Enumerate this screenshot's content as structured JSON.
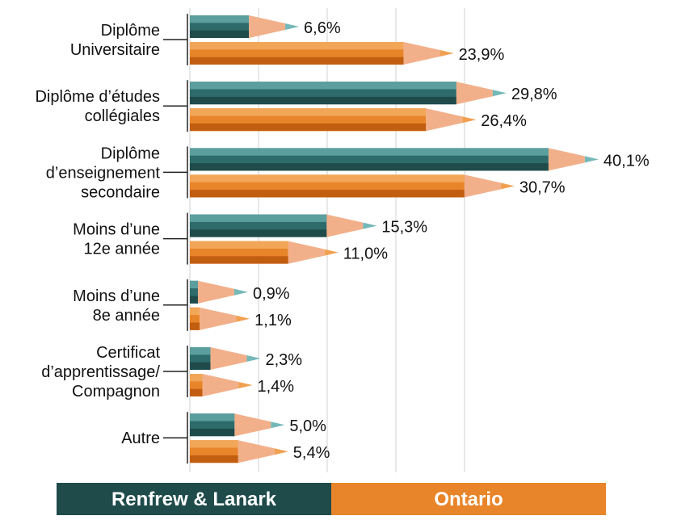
{
  "chart_data": {
    "type": "pencil-bar",
    "categories": [
      "Diplôme\nUniversitaire",
      "Diplôme d’études\ncollégiales",
      "Diplôme\nd’enseignement\nsecondaire",
      "Moins d’une\n12e année",
      "Moins d’une\n8e année",
      "Certificat\nd’apprentissage/\nCompagnon",
      "Autre"
    ],
    "series": [
      {
        "name": "Renfrew & Lanark",
        "color": "#2e6b6b",
        "values": [
          6.6,
          29.8,
          40.1,
          15.3,
          0.9,
          2.3,
          5.0
        ],
        "value_labels": [
          "6,6%",
          "29,8%",
          "40,1%",
          "15,3%",
          "0,9%",
          "2,3%",
          "5,0%"
        ]
      },
      {
        "name": "Ontario",
        "color": "#e8852a",
        "values": [
          23.9,
          26.4,
          30.7,
          11.0,
          1.1,
          1.4,
          5.4
        ],
        "value_labels": [
          "23,9%",
          "26,4%",
          "30,7%",
          "11,0%",
          "1,1%",
          "1,4%",
          "5,4%"
        ]
      }
    ]
  }
}
